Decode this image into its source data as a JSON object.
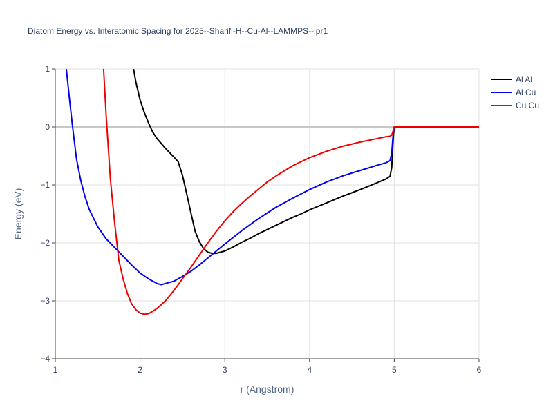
{
  "chart_data": {
    "type": "line",
    "title": "Diatom Energy vs. Interatomic Spacing for 2025--Sharifi-H--Cu-Al--LAMMPS--ipr1",
    "xlabel": "r (Angstrom)",
    "ylabel": "Energy (eV)",
    "xlim": [
      1,
      6
    ],
    "ylim": [
      -4,
      1
    ],
    "xticks": [
      "1",
      "2",
      "3",
      "4",
      "5",
      "6"
    ],
    "yticks": [
      "−4",
      "−3",
      "−2",
      "−1",
      "0",
      "1"
    ],
    "grid": true,
    "legend_position": "top-right",
    "series": [
      {
        "name": "Al Al",
        "color": "#000000",
        "x": [
          1.9,
          1.95,
          2.0,
          2.05,
          2.1,
          2.15,
          2.2,
          2.3,
          2.4,
          2.45,
          2.5,
          2.55,
          2.6,
          2.65,
          2.7,
          2.75,
          2.8,
          2.85,
          2.9,
          3.0,
          3.1,
          3.2,
          3.3,
          3.4,
          3.5,
          3.6,
          3.7,
          3.8,
          3.9,
          4.0,
          4.2,
          4.4,
          4.6,
          4.8,
          4.9,
          4.95,
          4.97,
          4.98,
          4.99,
          5.0,
          5.2,
          5.5,
          6.0
        ],
        "y": [
          1.2,
          0.78,
          0.47,
          0.25,
          0.07,
          -0.09,
          -0.2,
          -0.37,
          -0.52,
          -0.6,
          -0.83,
          -1.15,
          -1.48,
          -1.8,
          -1.98,
          -2.1,
          -2.16,
          -2.18,
          -2.18,
          -2.14,
          -2.07,
          -1.99,
          -1.92,
          -1.84,
          -1.77,
          -1.7,
          -1.63,
          -1.56,
          -1.5,
          -1.43,
          -1.31,
          -1.19,
          -1.08,
          -0.96,
          -0.9,
          -0.85,
          -0.7,
          -0.4,
          -0.15,
          0.0,
          0.0,
          0.0,
          0.0
        ]
      },
      {
        "name": "Al Cu",
        "color": "#0000ee",
        "x": [
          1.13,
          1.17,
          1.2,
          1.25,
          1.3,
          1.35,
          1.4,
          1.5,
          1.6,
          1.7,
          1.8,
          1.9,
          2.0,
          2.1,
          2.2,
          2.25,
          2.3,
          2.4,
          2.5,
          2.6,
          2.7,
          2.8,
          2.9,
          3.0,
          3.2,
          3.4,
          3.6,
          3.8,
          4.0,
          4.2,
          4.4,
          4.6,
          4.8,
          4.9,
          4.95,
          4.97,
          4.98,
          4.99,
          5.0,
          5.2,
          5.5,
          6.0
        ],
        "y": [
          1.0,
          0.45,
          0.05,
          -0.55,
          -0.92,
          -1.2,
          -1.42,
          -1.72,
          -1.93,
          -2.08,
          -2.23,
          -2.38,
          -2.52,
          -2.62,
          -2.7,
          -2.72,
          -2.7,
          -2.66,
          -2.58,
          -2.49,
          -2.38,
          -2.26,
          -2.14,
          -2.02,
          -1.79,
          -1.58,
          -1.39,
          -1.23,
          -1.08,
          -0.95,
          -0.84,
          -0.75,
          -0.66,
          -0.62,
          -0.58,
          -0.45,
          -0.25,
          -0.08,
          0.0,
          0.0,
          0.0,
          0.0
        ]
      },
      {
        "name": "Cu Cu",
        "color": "#ee0000",
        "x": [
          1.57,
          1.6,
          1.65,
          1.7,
          1.75,
          1.8,
          1.85,
          1.9,
          1.95,
          2.0,
          2.05,
          2.1,
          2.15,
          2.2,
          2.3,
          2.4,
          2.5,
          2.6,
          2.7,
          2.8,
          2.9,
          3.0,
          3.1,
          3.2,
          3.3,
          3.4,
          3.5,
          3.6,
          3.8,
          4.0,
          4.2,
          4.4,
          4.6,
          4.8,
          4.9,
          4.95,
          4.97,
          4.98,
          4.99,
          5.0,
          5.2,
          5.5,
          6.0
        ],
        "y": [
          1.0,
          0.2,
          -0.9,
          -1.65,
          -2.3,
          -2.62,
          -2.87,
          -3.05,
          -3.15,
          -3.21,
          -3.23,
          -3.22,
          -3.18,
          -3.13,
          -3.0,
          -2.82,
          -2.62,
          -2.42,
          -2.21,
          -2.0,
          -1.8,
          -1.62,
          -1.46,
          -1.32,
          -1.19,
          -1.07,
          -0.95,
          -0.85,
          -0.67,
          -0.53,
          -0.42,
          -0.33,
          -0.26,
          -0.2,
          -0.17,
          -0.16,
          -0.14,
          -0.1,
          -0.05,
          0.0,
          0.0,
          0.0,
          0.0
        ]
      }
    ]
  }
}
